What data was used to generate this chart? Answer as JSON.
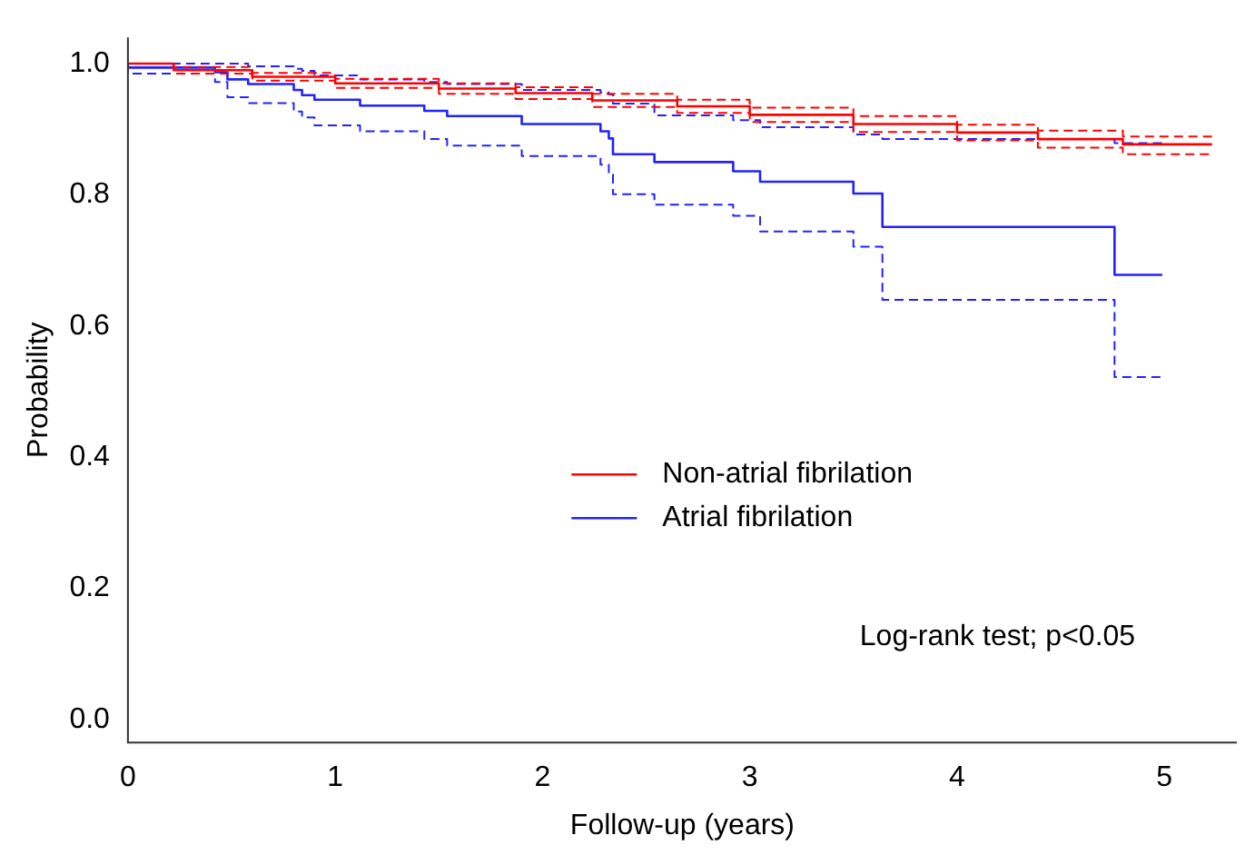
{
  "chart_data": {
    "type": "step",
    "xlabel": "Follow-up (years)",
    "ylabel": "Probability",
    "xlim": [
      0,
      5.35
    ],
    "ylim": [
      -0.035,
      1.04
    ],
    "xticks": [
      0,
      1,
      2,
      3,
      4,
      5
    ],
    "yticks": [
      {
        "value": 0,
        "label": "0.0"
      },
      {
        "value": 0.2,
        "label": "0.2"
      },
      {
        "value": 0.4,
        "label": "0.4"
      },
      {
        "value": 0.6,
        "label": "0.6"
      },
      {
        "value": 0.8,
        "label": "0.8"
      },
      {
        "value": 1,
        "label": "1.0"
      }
    ],
    "grid": false,
    "legend": "right",
    "marker": "none",
    "line_style": "solid",
    "annotations": [
      "Log-rank test; p<0.05"
    ],
    "series": [
      {
        "name": "Non-atrial fibrilation",
        "color": "#ff0000",
        "x": [
          0,
          0.22,
          0.6,
          1.0,
          1.5,
          1.87,
          2.24,
          2.65,
          3.0,
          3.5,
          4.0,
          4.39,
          4.8,
          5.1,
          5.23
        ],
        "values": [
          1,
          1,
          0.99,
          0.98,
          0.97,
          0.962,
          0.955,
          0.944,
          0.935,
          0.922,
          0.908,
          0.895,
          0.885,
          0.877,
          0.877
        ]
      },
      {
        "color": "#ff0000",
        "line_style": "dashed",
        "x": [
          0,
          0.22,
          0.6,
          1.0,
          1.5,
          1.87,
          2.24,
          2.65,
          3.0,
          3.5,
          4.0,
          4.39,
          4.8,
          5.1,
          5.23
        ],
        "values": [
          1,
          1,
          0.985,
          0.974,
          0.963,
          0.954,
          0.946,
          0.934,
          0.925,
          0.911,
          0.896,
          0.883,
          0.872,
          0.862,
          0.862
        ]
      },
      {
        "color": "#ff0000",
        "line_style": "dashed",
        "x": [
          0,
          0.22,
          0.6,
          1.0,
          1.5,
          1.87,
          2.24,
          2.65,
          3.0,
          3.5,
          4.0,
          4.39,
          4.8,
          5.1,
          5.23
        ],
        "values": [
          1,
          1,
          0.995,
          0.986,
          0.977,
          0.97,
          0.964,
          0.954,
          0.945,
          0.933,
          0.92,
          0.907,
          0.898,
          0.889,
          0.889
        ]
      },
      {
        "name": "Atrial fibrilation",
        "color": "#2222ff",
        "x": [
          0,
          0.42,
          0.48,
          0.58,
          0.8,
          0.84,
          0.9,
          1.12,
          1.43,
          1.54,
          1.9,
          2.28,
          2.32,
          2.34,
          2.54,
          2.92,
          3.05,
          3.5,
          3.64,
          4.76,
          4.85,
          4.99
        ],
        "values": [
          1,
          0.994,
          0.987,
          0.976,
          0.969,
          0.96,
          0.952,
          0.945,
          0.936,
          0.928,
          0.92,
          0.908,
          0.897,
          0.886,
          0.862,
          0.85,
          0.836,
          0.82,
          0.802,
          0.751,
          0.678,
          0.678
        ]
      },
      {
        "color": "#2222ff",
        "line_style": "dashed",
        "x": [
          0,
          0.42,
          0.48,
          0.58,
          0.8,
          0.84,
          0.9,
          1.12,
          1.43,
          1.54,
          1.9,
          2.28,
          2.32,
          2.34,
          2.54,
          2.92,
          3.05,
          3.5,
          3.64,
          4.76,
          4.85,
          4.99
        ],
        "values": [
          1,
          0.985,
          0.972,
          0.949,
          0.94,
          0.927,
          0.918,
          0.906,
          0.897,
          0.885,
          0.875,
          0.859,
          0.846,
          0.831,
          0.801,
          0.785,
          0.768,
          0.744,
          0.721,
          0.64,
          0.522,
          0.522
        ]
      },
      {
        "color": "#2222ff",
        "line_style": "dashed",
        "x": [
          0,
          0.42,
          0.48,
          0.58,
          0.8,
          0.84,
          0.9,
          1.12,
          1.43,
          1.54,
          1.9,
          2.28,
          2.32,
          2.34,
          2.54,
          2.92,
          3.05,
          3.5,
          3.64,
          4.76,
          4.85,
          4.99
        ],
        "values": [
          1,
          1,
          1,
          1,
          0.996,
          0.992,
          0.989,
          0.982,
          0.976,
          0.972,
          0.969,
          0.96,
          0.956,
          0.953,
          0.939,
          0.921,
          0.914,
          0.903,
          0.892,
          0.885,
          0.879,
          0.879
        ]
      }
    ]
  }
}
